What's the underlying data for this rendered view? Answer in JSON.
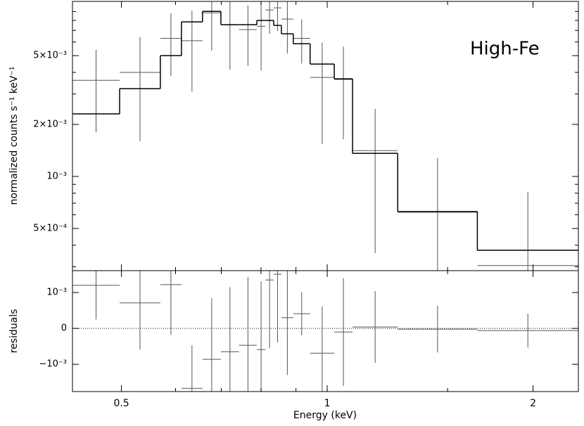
{
  "chart_data": [
    {
      "type": "spectrum",
      "ylabel": "normalized counts s⁻¹ keV⁻¹",
      "annotation": "High-Fe",
      "log_x": true,
      "log_y": true,
      "xlim": [
        0.424,
        2.33
      ],
      "ylim": [
        0.000285,
        0.0103
      ],
      "xticks": [
        0.5,
        1,
        2
      ],
      "xminorticks": [
        0.6,
        0.7,
        0.8,
        0.9,
        1.5
      ],
      "yticks": [
        {
          "value": 0.0005,
          "label": "5×10⁻⁴"
        },
        {
          "value": 0.001,
          "label": "10⁻³"
        },
        {
          "value": 0.002,
          "label": "2×10⁻³"
        },
        {
          "value": 0.005,
          "label": "5×10⁻³"
        }
      ],
      "yminorticks": [
        0.0003,
        0.0004,
        0.0006,
        0.0007,
        0.0008,
        0.0009,
        0.003,
        0.004,
        0.006,
        0.007,
        0.008,
        0.009
      ],
      "bin_edges": [
        0.424,
        0.497,
        0.57,
        0.612,
        0.657,
        0.699,
        0.743,
        0.789,
        0.812,
        0.835,
        0.857,
        0.892,
        0.944,
        1.024,
        1.089,
        1.268,
        1.658,
        2.33
      ],
      "data": {
        "color": "#555555",
        "values": [
          0.0036,
          0.004,
          0.0063,
          0.0061,
          0.00885,
          0.00755,
          0.00707,
          0.0074,
          0.00919,
          0.00945,
          0.00814,
          0.0063,
          0.00374,
          0.00364,
          0.00141,
          0.000621,
          0.000305
        ],
        "errors": [
          0.0018,
          0.0024,
          0.0025,
          0.003,
          0.0035,
          0.0034,
          0.0027,
          0.0033,
          0.0025,
          0.0025,
          0.003,
          0.0018,
          0.0022,
          0.002,
          0.00105,
          0.00066,
          0.00051
        ]
      },
      "model": {
        "color": "#000000",
        "values": [
          0.0023,
          0.00322,
          0.005,
          0.00784,
          0.00902,
          0.00755,
          0.00755,
          0.00799,
          0.00799,
          0.00748,
          0.00669,
          0.00586,
          0.00447,
          0.00367,
          0.00136,
          0.000626,
          0.000374
        ]
      }
    },
    {
      "type": "residuals",
      "xlabel": "Energy (keV)",
      "ylabel": "residuals",
      "log_x": true,
      "xlim": [
        0.424,
        2.33
      ],
      "ylim": [
        -0.00176,
        0.00161
      ],
      "xticks": [
        0.5,
        1,
        2
      ],
      "xminorticks": [
        0.6,
        0.7,
        0.8,
        0.9,
        1.5
      ],
      "yticks": [
        {
          "value": 0.001,
          "label": "10⁻³"
        },
        0,
        {
          "value": -0.001,
          "label": "−10⁻³"
        }
      ],
      "zero_line": true,
      "color": "#555555",
      "bin_edges": [
        0.424,
        0.497,
        0.57,
        0.612,
        0.657,
        0.699,
        0.743,
        0.789,
        0.812,
        0.835,
        0.857,
        0.892,
        0.944,
        1.024,
        1.089,
        1.268,
        1.658,
        2.33
      ],
      "values": [
        0.0012,
        0.00071,
        0.00122,
        -0.00167,
        -0.00086,
        -0.00065,
        -0.00047,
        -0.00059,
        0.00135,
        0.00151,
        0.0003,
        0.00041,
        -0.00069,
        -0.0001,
        4e-05,
        -2e-05,
        -6e-05
      ],
      "errors": [
        0.00095,
        0.0013,
        0.0014,
        0.0012,
        0.0017,
        0.0018,
        0.0019,
        0.0019,
        0.0019,
        0.0019,
        0.0016,
        0.0006,
        0.0013,
        0.0015,
        0.001,
        0.00065,
        0.00047
      ]
    }
  ]
}
